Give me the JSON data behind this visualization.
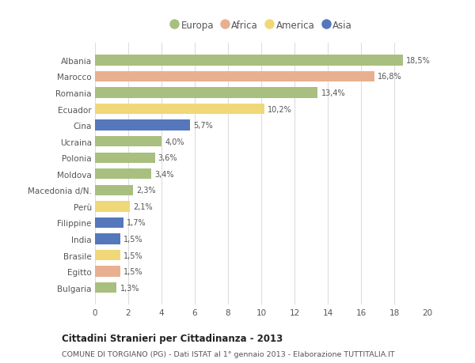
{
  "categories": [
    "Albania",
    "Marocco",
    "Romania",
    "Ecuador",
    "Cina",
    "Ucraina",
    "Polonia",
    "Moldova",
    "Macedonia d/N.",
    "Perù",
    "Filippine",
    "India",
    "Brasile",
    "Egitto",
    "Bulgaria"
  ],
  "values": [
    18.5,
    16.8,
    13.4,
    10.2,
    5.7,
    4.0,
    3.6,
    3.4,
    2.3,
    2.1,
    1.7,
    1.5,
    1.5,
    1.5,
    1.3
  ],
  "labels": [
    "18,5%",
    "16,8%",
    "13,4%",
    "10,2%",
    "5,7%",
    "4,0%",
    "3,6%",
    "3,4%",
    "2,3%",
    "2,1%",
    "1,7%",
    "1,5%",
    "1,5%",
    "1,5%",
    "1,3%"
  ],
  "continents": [
    "Europa",
    "Africa",
    "Europa",
    "America",
    "Asia",
    "Europa",
    "Europa",
    "Europa",
    "Europa",
    "America",
    "Asia",
    "Asia",
    "America",
    "Africa",
    "Europa"
  ],
  "colors": {
    "Europa": "#a8bf80",
    "Africa": "#e8b090",
    "America": "#f0d878",
    "Asia": "#5577bb"
  },
  "title": "Cittadini Stranieri per Cittadinanza - 2013",
  "subtitle": "COMUNE DI TORGIANO (PG) - Dati ISTAT al 1° gennaio 2013 - Elaborazione TUTTITALIA.IT",
  "xlim": [
    0,
    20
  ],
  "xticks": [
    0,
    2,
    4,
    6,
    8,
    10,
    12,
    14,
    16,
    18,
    20
  ],
  "background_color": "#ffffff",
  "plot_bg_color": "#ffffff",
  "grid_color": "#dddddd",
  "bar_height": 0.65,
  "legend_order": [
    "Europa",
    "Africa",
    "America",
    "Asia"
  ]
}
